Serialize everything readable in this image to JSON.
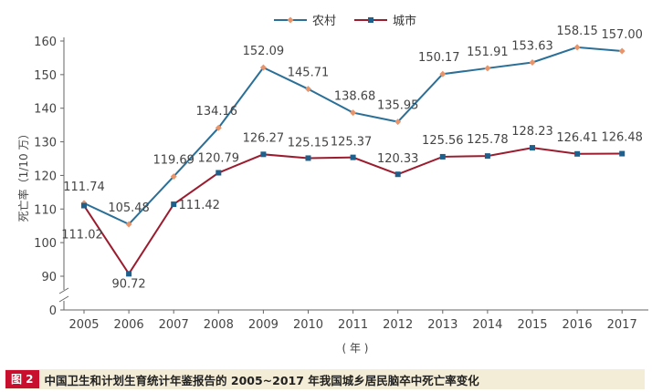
{
  "chart_data": {
    "type": "line",
    "x": [
      "2005",
      "2006",
      "2007",
      "2008",
      "2009",
      "2010",
      "2011",
      "2012",
      "2013",
      "2014",
      "2015",
      "2016",
      "2017"
    ],
    "series": [
      {
        "name": "农村",
        "color": "#2a6f97",
        "marker": "diamond",
        "marker_color": "#e8956b",
        "values": [
          111.74,
          105.48,
          119.69,
          134.16,
          152.09,
          145.71,
          138.68,
          135.95,
          150.17,
          151.91,
          153.63,
          158.15,
          157.0
        ],
        "labels": [
          "111.74",
          "105.48",
          "119.69",
          "134.16",
          "152.09",
          "145.71",
          "138.68",
          "135.95",
          "150.17",
          "151.91",
          "153.63",
          "158.15",
          "157.00"
        ]
      },
      {
        "name": "城市",
        "color": "#9b1c2e",
        "marker": "square",
        "marker_color": "#1f5f8b",
        "values": [
          111.02,
          90.72,
          111.42,
          120.79,
          126.27,
          125.15,
          125.37,
          120.33,
          125.56,
          125.78,
          128.23,
          126.41,
          126.48
        ],
        "labels": [
          "111.02",
          "90.72",
          "111.42",
          "120.79",
          "126.27",
          "125.15",
          "125.37",
          "120.33",
          "125.56",
          "125.78",
          "128.23",
          "126.41",
          "126.48"
        ]
      }
    ],
    "y_ticks": [
      "0",
      "90",
      "100",
      "110",
      "120",
      "130",
      "140",
      "150",
      "160"
    ],
    "ylim": [
      90,
      160
    ],
    "y_axis_break": true,
    "xlabel": "( 年 )",
    "ylabel": "死亡率（1/10 万）",
    "legend_position": "top-center",
    "grid": false
  },
  "caption": {
    "badge": "图 2",
    "text": "中国卫生和计划生育统计年鉴报告的 2005~2017 年我国城乡居民脑卒中死亡率变化",
    "badge_color": "#c8102e",
    "bar_color": "#f3ecd6"
  }
}
